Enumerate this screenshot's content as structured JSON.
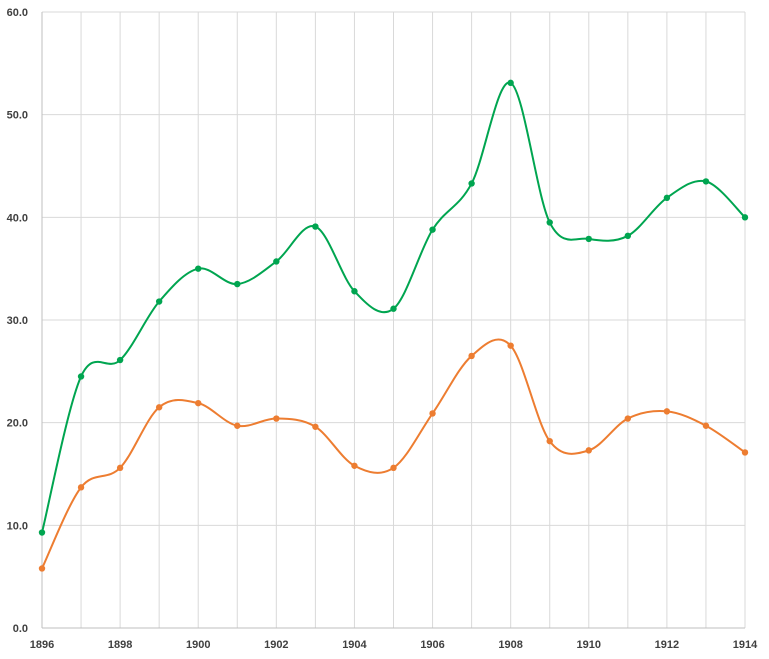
{
  "chart_data": {
    "type": "line",
    "title": "",
    "xlabel": "",
    "ylabel": "",
    "x": [
      1896,
      1897,
      1898,
      1899,
      1900,
      1901,
      1902,
      1903,
      1904,
      1905,
      1906,
      1907,
      1908,
      1909,
      1910,
      1911,
      1912,
      1913,
      1914
    ],
    "xlim": [
      1896,
      1914
    ],
    "ylim": [
      0,
      60
    ],
    "x_ticks": [
      "1896",
      "1898",
      "1900",
      "1902",
      "1904",
      "1906",
      "1908",
      "1910",
      "1912",
      "1914"
    ],
    "y_ticks": [
      "0.0",
      "10.0",
      "20.0",
      "30.0",
      "40.0",
      "50.0",
      "60.0"
    ],
    "grid": true,
    "smooth": true,
    "series": [
      {
        "color": "#00a550",
        "values": [
          9.3,
          24.5,
          26.1,
          31.8,
          35.0,
          33.5,
          35.7,
          39.1,
          32.8,
          31.1,
          38.8,
          43.3,
          53.1,
          39.5,
          37.9,
          38.2,
          41.9,
          43.5,
          40.0
        ]
      },
      {
        "color": "#ed7d31",
        "values": [
          5.8,
          13.7,
          15.6,
          21.5,
          21.9,
          19.7,
          20.4,
          19.6,
          15.8,
          15.6,
          20.9,
          26.5,
          27.5,
          18.2,
          17.3,
          20.4,
          21.1,
          19.7,
          17.1
        ]
      }
    ]
  }
}
